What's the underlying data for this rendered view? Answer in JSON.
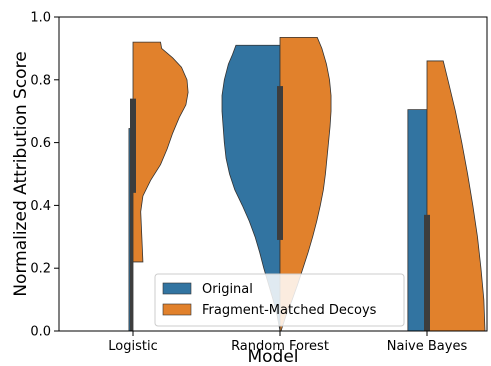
{
  "chart_data": {
    "type": "violin",
    "title": "",
    "xlabel": "Model",
    "ylabel": "Normalized Attribution Score",
    "ylim": [
      0.0,
      1.0
    ],
    "yticks": [
      "0.0",
      "0.2",
      "0.4",
      "0.6",
      "0.8",
      "1.0"
    ],
    "categories": [
      "Logistic",
      "Random Forest",
      "Naive Bayes"
    ],
    "legend": {
      "position": "bottom-center",
      "entries": [
        "Original",
        "Fragment-Matched Decoys"
      ]
    },
    "colors": {
      "Original": "#3274a1",
      "Fragment-Matched Decoys": "#e1812c"
    },
    "series": [
      {
        "name": "Original",
        "side": "left",
        "violins": [
          {
            "category": "Logistic",
            "min": 0.0,
            "max": 0.645,
            "maxWidthFrac": 0.07,
            "profile": [
              [
                0.0,
                1.0
              ],
              [
                0.645,
                1.0
              ]
            ],
            "quartile_bar": [
              0.0,
              0.74
            ]
          },
          {
            "category": "Random Forest",
            "min": 0.0,
            "max": 0.91,
            "maxWidthFrac": 1.0,
            "profile": [
              [
                0.0,
                0.0
              ],
              [
                0.05,
                0.05
              ],
              [
                0.1,
                0.12
              ],
              [
                0.15,
                0.2
              ],
              [
                0.2,
                0.28
              ],
              [
                0.25,
                0.35
              ],
              [
                0.3,
                0.43
              ],
              [
                0.35,
                0.53
              ],
              [
                0.4,
                0.65
              ],
              [
                0.45,
                0.78
              ],
              [
                0.5,
                0.87
              ],
              [
                0.55,
                0.93
              ],
              [
                0.6,
                0.96
              ],
              [
                0.65,
                0.98
              ],
              [
                0.7,
                1.0
              ],
              [
                0.75,
                1.0
              ],
              [
                0.8,
                0.96
              ],
              [
                0.85,
                0.89
              ],
              [
                0.88,
                0.82
              ],
              [
                0.91,
                0.76
              ]
            ],
            "quartile_bar": [
              0.29,
              0.78
            ]
          },
          {
            "category": "Naive Bayes",
            "min": 0.0,
            "max": 0.705,
            "maxWidthFrac": 0.33,
            "profile": [
              [
                0.0,
                1.0
              ],
              [
                0.705,
                1.0
              ]
            ],
            "quartile_bar": [
              0.0,
              0.37
            ]
          }
        ]
      },
      {
        "name": "Fragment-Matched Decoys",
        "side": "right",
        "violins": [
          {
            "category": "Logistic",
            "min": 0.22,
            "max": 0.92,
            "maxWidthFrac": 0.95,
            "profile": [
              [
                0.22,
                0.18
              ],
              [
                0.3,
                0.16
              ],
              [
                0.38,
                0.14
              ],
              [
                0.43,
                0.18
              ],
              [
                0.48,
                0.32
              ],
              [
                0.53,
                0.5
              ],
              [
                0.58,
                0.62
              ],
              [
                0.63,
                0.72
              ],
              [
                0.68,
                0.84
              ],
              [
                0.72,
                0.96
              ],
              [
                0.76,
                1.0
              ],
              [
                0.8,
                0.98
              ],
              [
                0.84,
                0.88
              ],
              [
                0.87,
                0.72
              ],
              [
                0.9,
                0.52
              ],
              [
                0.92,
                0.5
              ]
            ],
            "quartile_bar": [
              0.44,
              0.74
            ]
          },
          {
            "category": "Random Forest",
            "min": 0.0,
            "max": 0.935,
            "maxWidthFrac": 0.88,
            "profile": [
              [
                0.0,
                0.02
              ],
              [
                0.05,
                0.12
              ],
              [
                0.1,
                0.24
              ],
              [
                0.15,
                0.35
              ],
              [
                0.2,
                0.45
              ],
              [
                0.25,
                0.55
              ],
              [
                0.3,
                0.64
              ],
              [
                0.35,
                0.72
              ],
              [
                0.4,
                0.79
              ],
              [
                0.45,
                0.85
              ],
              [
                0.5,
                0.89
              ],
              [
                0.55,
                0.92
              ],
              [
                0.6,
                0.95
              ],
              [
                0.65,
                0.98
              ],
              [
                0.7,
                1.0
              ],
              [
                0.75,
                1.0
              ],
              [
                0.8,
                0.97
              ],
              [
                0.85,
                0.91
              ],
              [
                0.9,
                0.82
              ],
              [
                0.935,
                0.73
              ]
            ],
            "quartile_bar": [
              0.29,
              0.78
            ]
          },
          {
            "category": "Naive Bayes",
            "min": 0.0,
            "max": 0.86,
            "maxWidthFrac": 1.0,
            "profile": [
              [
                0.0,
                1.0
              ],
              [
                0.1,
                0.98
              ],
              [
                0.2,
                0.93
              ],
              [
                0.3,
                0.87
              ],
              [
                0.4,
                0.79
              ],
              [
                0.5,
                0.7
              ],
              [
                0.6,
                0.6
              ],
              [
                0.7,
                0.49
              ],
              [
                0.8,
                0.36
              ],
              [
                0.86,
                0.28
              ]
            ],
            "quartile_bar": [
              0.0,
              0.37
            ]
          }
        ]
      }
    ]
  }
}
